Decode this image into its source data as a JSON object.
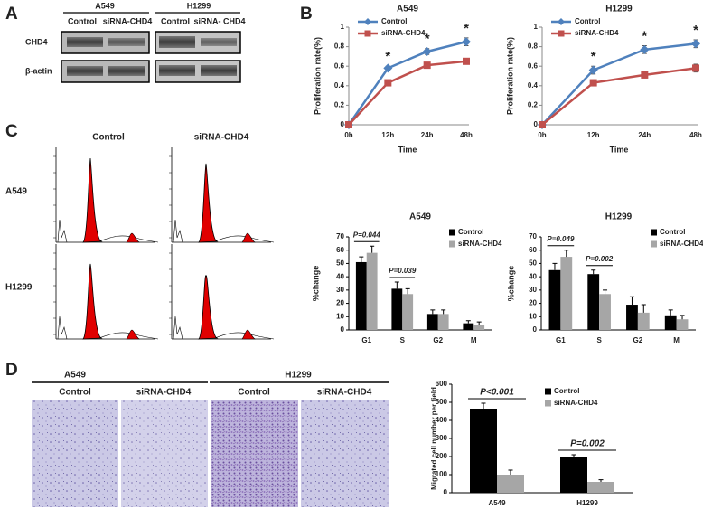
{
  "panel_labels": [
    "A",
    "B",
    "C",
    "D"
  ],
  "blot": {
    "groups": [
      "A549",
      "H1299"
    ],
    "lanes": [
      [
        "Control",
        "siRNA-CHD4"
      ],
      [
        "Control",
        "siRNA- CHD4"
      ]
    ],
    "rows": [
      "CHD4",
      "β-actin"
    ]
  },
  "flow": {
    "columns": [
      "Control",
      "siRNA-CHD4"
    ],
    "rows": [
      "A549",
      "H1299"
    ]
  },
  "invasion": {
    "groups": [
      "A549",
      "H1299"
    ],
    "columns": [
      "Control",
      "siRNA-CHD4",
      "Control",
      "siRNA-CHD4"
    ]
  },
  "chart_data": [
    {
      "type": "line",
      "title": "A549",
      "x_label": "Time",
      "y_label": "Proliferation rate(%)",
      "categories": [
        "0h",
        "12h",
        "24h",
        "48h"
      ],
      "series": [
        {
          "name": "Control",
          "color": "#4f81bd",
          "values": [
            0,
            0.58,
            0.75,
            0.85
          ],
          "errors": [
            0,
            0.02,
            0.03,
            0.04
          ]
        },
        {
          "name": "siRNA-CHD4",
          "color": "#c0504d",
          "values": [
            0,
            0.43,
            0.61,
            0.65
          ],
          "errors": [
            0,
            0.015,
            0.02,
            0.03
          ]
        }
      ],
      "ylim": [
        0,
        1
      ],
      "yticks": [
        0,
        0.2,
        0.4,
        0.6,
        0.8,
        1
      ],
      "annotations": [
        "*",
        "*",
        "*"
      ],
      "legend": "upper left"
    },
    {
      "type": "line",
      "title": "H1299",
      "x_label": "Time",
      "y_label": "Proliferation rate(%)",
      "categories": [
        "0h",
        "12h",
        "24h",
        "48h"
      ],
      "series": [
        {
          "name": "Control",
          "color": "#4f81bd",
          "values": [
            0,
            0.56,
            0.77,
            0.83
          ],
          "errors": [
            0,
            0.04,
            0.04,
            0.04
          ]
        },
        {
          "name": "siRNA-CHD4",
          "color": "#c0504d",
          "values": [
            0,
            0.43,
            0.51,
            0.58
          ],
          "errors": [
            0,
            0.03,
            0.03,
            0.04
          ]
        }
      ],
      "ylim": [
        0,
        1
      ],
      "yticks": [
        0,
        0.2,
        0.4,
        0.6,
        0.8,
        1
      ],
      "annotations": [
        "*",
        "*",
        "*"
      ],
      "legend": "upper left"
    },
    {
      "type": "bar",
      "title": "A549",
      "y_label": "%change",
      "categories": [
        "G1",
        "S",
        "G2",
        "M"
      ],
      "series": [
        {
          "name": "Control",
          "color": "#000000",
          "values": [
            51,
            31,
            12,
            5
          ],
          "errors": [
            4,
            5,
            3,
            2
          ]
        },
        {
          "name": "siRNA-CHD4",
          "color": "#a6a6a6",
          "values": [
            58,
            27,
            12,
            4
          ],
          "errors": [
            5,
            4,
            3,
            2
          ]
        }
      ],
      "ylim": [
        0,
        70
      ],
      "yticks": [
        0,
        10,
        20,
        30,
        40,
        50,
        60,
        70
      ],
      "annotations": [
        "P=0.044",
        "P=0.039"
      ],
      "legend": "upper right"
    },
    {
      "type": "bar",
      "title": "H1299",
      "y_label": "%change",
      "categories": [
        "G1",
        "S",
        "G2",
        "M"
      ],
      "series": [
        {
          "name": "Control",
          "color": "#000000",
          "values": [
            45,
            42,
            19,
            11
          ],
          "errors": [
            5,
            3,
            6,
            4
          ]
        },
        {
          "name": "siRNA-CHD4",
          "color": "#a6a6a6",
          "values": [
            55,
            27,
            13,
            8
          ],
          "errors": [
            5,
            3,
            6,
            3
          ]
        }
      ],
      "ylim": [
        0,
        70
      ],
      "yticks": [
        0,
        10,
        20,
        30,
        40,
        50,
        60,
        70
      ],
      "annotations": [
        "P=0.049",
        "P=0.002"
      ],
      "legend": "upper right"
    },
    {
      "type": "bar",
      "y_label": "Migrated cell number per field",
      "categories": [
        "A549",
        "H1299"
      ],
      "series": [
        {
          "name": "Control",
          "color": "#000000",
          "values": [
            465,
            195
          ],
          "errors": [
            30,
            15
          ]
        },
        {
          "name": "siRNA-CHD4",
          "color": "#a6a6a6",
          "values": [
            100,
            60
          ],
          "errors": [
            25,
            12
          ]
        }
      ],
      "ylim": [
        0,
        600
      ],
      "yticks": [
        0,
        100,
        200,
        300,
        400,
        500,
        600
      ],
      "annotations": [
        "P<0.001",
        "P=0.002"
      ],
      "legend": "upper right"
    }
  ]
}
